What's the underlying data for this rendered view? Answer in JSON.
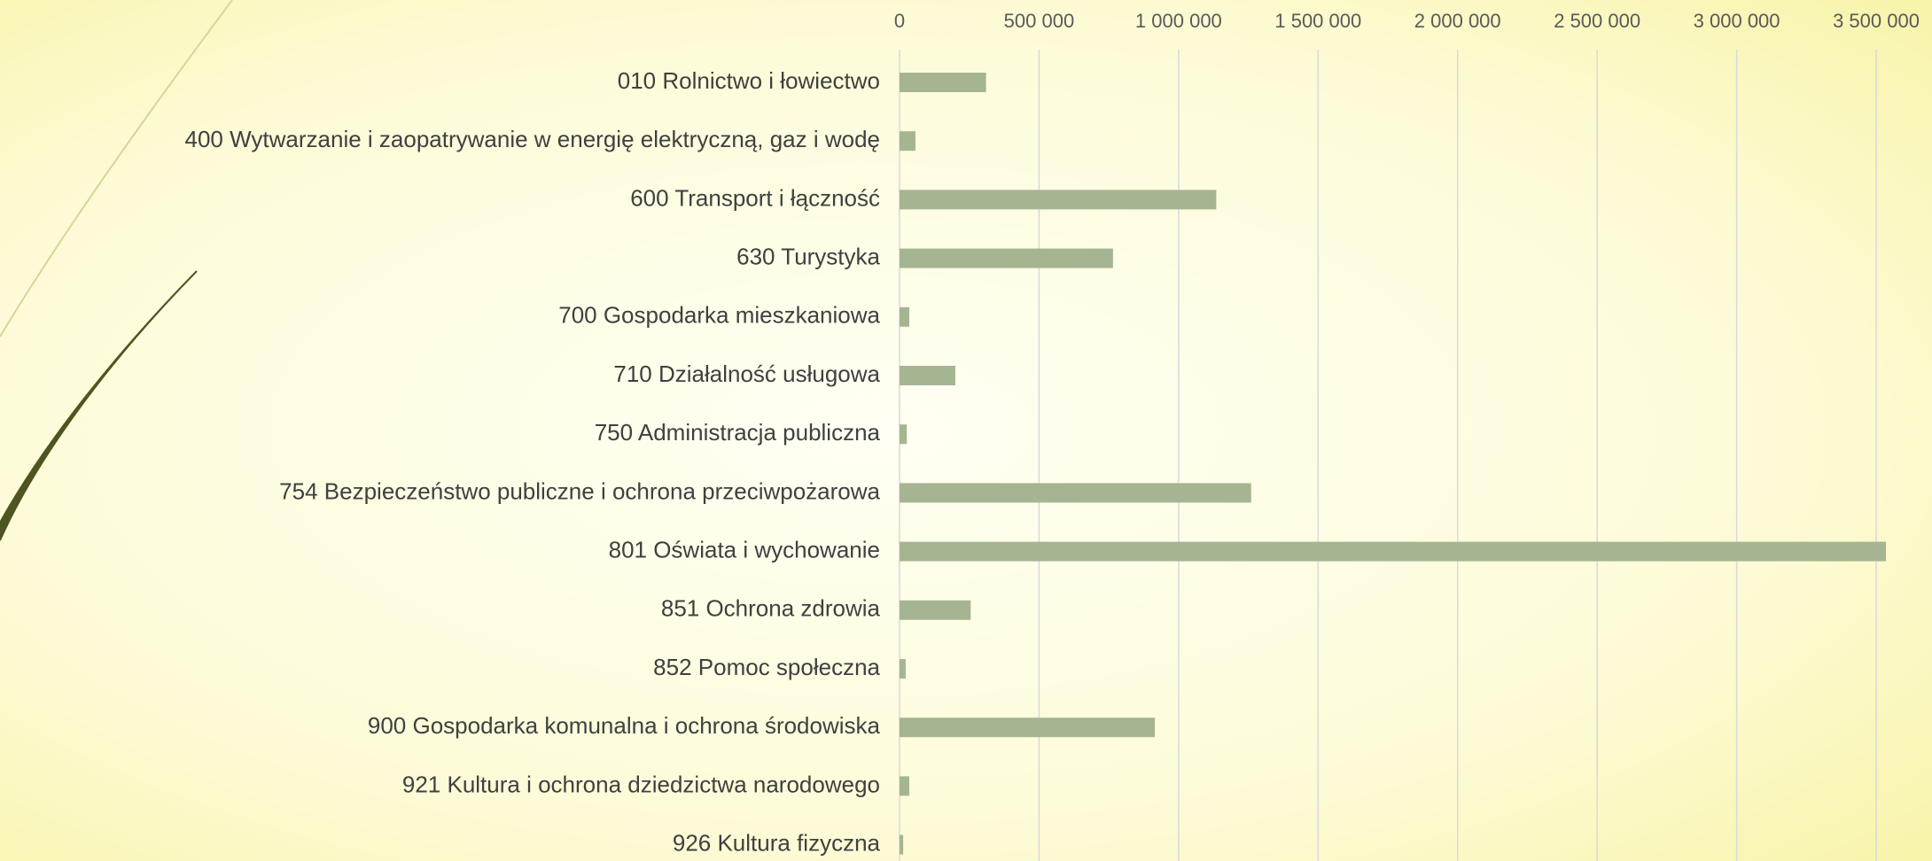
{
  "chart_data": {
    "type": "barh",
    "categories": [
      "010 Rolnictwo i łowiectwo",
      "400 Wytwarzanie i zaopatrywanie w energię elektryczną, gaz i wodę",
      "600 Transport i łączność",
      "630 Turystyka",
      "700 Gospodarka mieszkaniowa",
      "710 Działalność usługowa",
      "750 Administracja publiczna",
      "754 Bezpieczeństwo publiczne i ochrona przeciwpożarowa",
      "801 Oświata i wychowanie",
      "851 Ochrona zdrowia",
      "852 Pomoc społeczna",
      "900 Gospodarka komunalna i ochrona środowiska",
      "921 Kultura i ochrona dziedzictwa narodowego",
      "926 Kultura fizyczna"
    ],
    "values": [
      310000,
      57000,
      1135000,
      765000,
      35000,
      200000,
      26000,
      1260000,
      3535000,
      255000,
      22000,
      915000,
      35000,
      13000
    ],
    "color": "#a5b592",
    "xlim": [
      0,
      3700000
    ],
    "xticks": [
      0,
      {
        "value": 500000,
        "label": "500 000"
      },
      {
        "value": 1000000,
        "label": "1 000 000"
      },
      {
        "value": 1500000,
        "label": "1 500 000"
      },
      {
        "value": 2000000,
        "label": "2 000 000"
      },
      {
        "value": 2500000,
        "label": "2 500 000"
      },
      {
        "value": 3000000,
        "label": "3 000 000"
      },
      {
        "value": 3500000,
        "label": "3 500 000"
      }
    ],
    "grid": true
  }
}
